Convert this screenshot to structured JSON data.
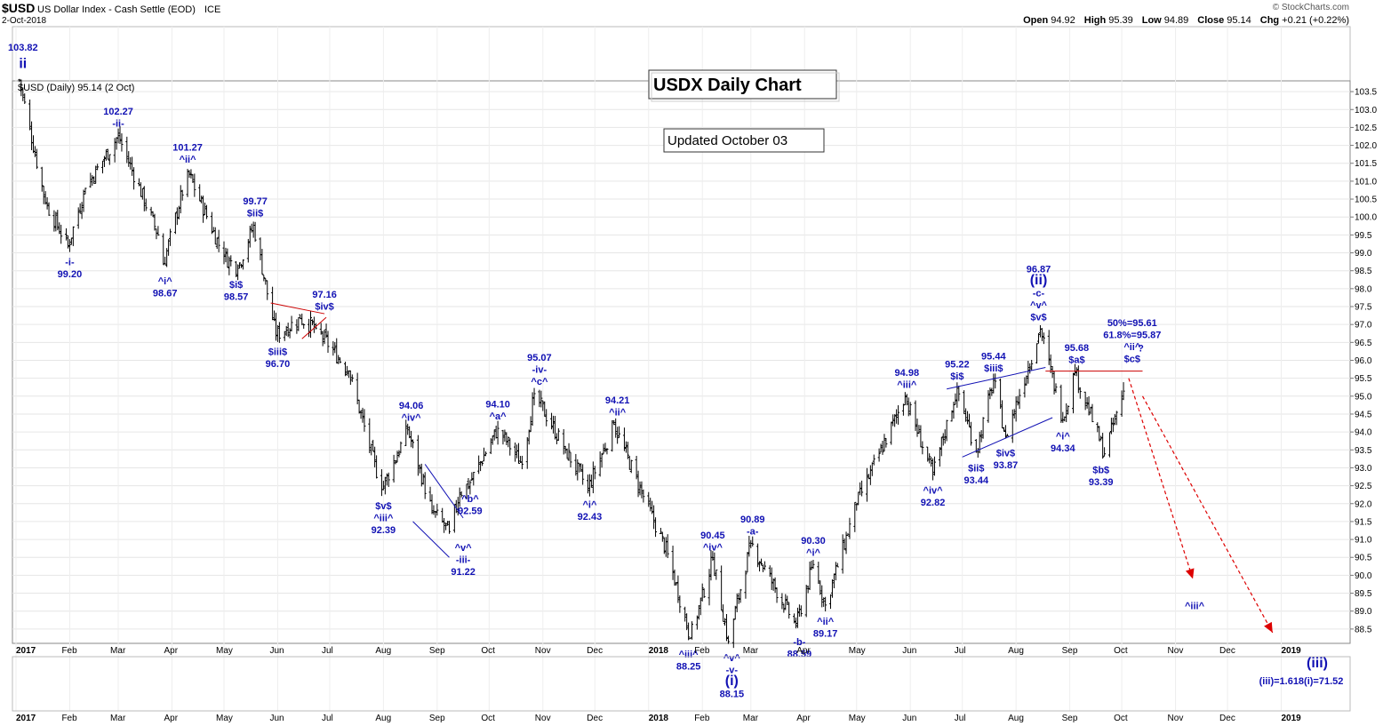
{
  "header": {
    "symbol": "$USD",
    "name": "US Dollar Index - Cash Settle (EOD)",
    "exchange": "ICE",
    "date": "2-Oct-2018",
    "copyright": "© StockCharts.com",
    "ohlc": [
      {
        "label": "Open",
        "value": "94.92"
      },
      {
        "label": "High",
        "value": "95.39"
      },
      {
        "label": "Low",
        "value": "94.89"
      },
      {
        "label": "Close",
        "value": "95.14"
      },
      {
        "label": "Chg",
        "value": "+0.21 (+0.22%)"
      }
    ]
  },
  "chart_data": {
    "type": "ohlc-bar",
    "series_label": "$USD (Daily) 95.14 (2 Oct)",
    "title_box": "USDX Daily Chart",
    "updated_box": "Updated October 03",
    "y_axis": {
      "min": 88.1,
      "max": 103.8,
      "ticks": [
        "88.5",
        "89.0",
        "89.5",
        "90.0",
        "90.5",
        "91.0",
        "91.5",
        "92.0",
        "92.5",
        "93.0",
        "93.5",
        "94.0",
        "94.5",
        "95.0",
        "95.5",
        "96.0",
        "96.5",
        "97.0",
        "97.5",
        "98.0",
        "98.5",
        "99.0",
        "99.5",
        "100.0",
        "100.5",
        "101.0",
        "101.5",
        "102.0",
        "102.5",
        "103.0",
        "103.5"
      ]
    },
    "x_axis": {
      "start": "2017-01-01",
      "end": "2019-01-31",
      "month_labels": [
        {
          "date": "2017-01-01",
          "label": "2017",
          "year": true
        },
        {
          "date": "2017-02-01",
          "label": "Feb"
        },
        {
          "date": "2017-03-01",
          "label": "Mar"
        },
        {
          "date": "2017-04-01",
          "label": "Apr"
        },
        {
          "date": "2017-05-01",
          "label": "May"
        },
        {
          "date": "2017-06-01",
          "label": "Jun"
        },
        {
          "date": "2017-07-01",
          "label": "Jul"
        },
        {
          "date": "2017-08-01",
          "label": "Aug"
        },
        {
          "date": "2017-09-01",
          "label": "Sep"
        },
        {
          "date": "2017-10-01",
          "label": "Oct"
        },
        {
          "date": "2017-11-01",
          "label": "Nov"
        },
        {
          "date": "2017-12-01",
          "label": "Dec"
        },
        {
          "date": "2018-01-01",
          "label": "2018",
          "year": true
        },
        {
          "date": "2018-02-01",
          "label": "Feb"
        },
        {
          "date": "2018-03-01",
          "label": "Mar"
        },
        {
          "date": "2018-04-01",
          "label": "Apr"
        },
        {
          "date": "2018-05-01",
          "label": "May"
        },
        {
          "date": "2018-06-01",
          "label": "Jun"
        },
        {
          "date": "2018-07-01",
          "label": "Jul"
        },
        {
          "date": "2018-08-01",
          "label": "Aug"
        },
        {
          "date": "2018-09-01",
          "label": "Sep"
        },
        {
          "date": "2018-10-01",
          "label": "Oct"
        },
        {
          "date": "2018-11-01",
          "label": "Nov"
        },
        {
          "date": "2018-12-01",
          "label": "Dec"
        },
        {
          "date": "2019-01-01",
          "label": "2019",
          "year": true
        }
      ]
    },
    "price_path": [
      [
        "2017-01-03",
        103.82
      ],
      [
        "2017-01-18",
        100.4
      ],
      [
        "2017-01-31",
        99.2
      ],
      [
        "2017-02-10",
        100.8
      ],
      [
        "2017-03-01",
        102.27
      ],
      [
        "2017-03-24",
        99.5
      ],
      [
        "2017-03-27",
        98.67
      ],
      [
        "2017-04-10",
        101.27
      ],
      [
        "2017-05-01",
        98.9
      ],
      [
        "2017-05-09",
        98.57
      ],
      [
        "2017-05-18",
        99.77
      ],
      [
        "2017-05-31",
        96.7
      ],
      [
        "2017-06-14",
        97.16
      ],
      [
        "2017-06-23",
        96.9
      ],
      [
        "2017-07-12",
        95.7
      ],
      [
        "2017-07-31",
        92.39
      ],
      [
        "2017-08-15",
        94.06
      ],
      [
        "2017-08-29",
        91.8
      ],
      [
        "2017-09-08",
        91.22
      ],
      [
        "2017-09-14",
        92.3
      ],
      [
        "2017-09-20",
        92.59
      ],
      [
        "2017-10-06",
        94.1
      ],
      [
        "2017-10-20",
        93.1
      ],
      [
        "2017-10-27",
        95.07
      ],
      [
        "2017-11-14",
        93.5
      ],
      [
        "2017-11-27",
        92.43
      ],
      [
        "2017-12-12",
        94.21
      ],
      [
        "2017-12-29",
        92.2
      ],
      [
        "2018-01-12",
        90.6
      ],
      [
        "2018-01-25",
        88.25
      ],
      [
        "2018-02-07",
        90.45
      ],
      [
        "2018-02-16",
        88.15
      ],
      [
        "2018-03-01",
        90.89
      ],
      [
        "2018-03-27",
        88.59
      ],
      [
        "2018-04-06",
        90.3
      ],
      [
        "2018-04-13",
        89.17
      ],
      [
        "2018-05-01",
        92.0
      ],
      [
        "2018-05-29",
        94.98
      ],
      [
        "2018-06-14",
        92.82
      ],
      [
        "2018-06-28",
        95.22
      ],
      [
        "2018-07-09",
        93.44
      ],
      [
        "2018-07-19",
        95.44
      ],
      [
        "2018-07-26",
        93.87
      ],
      [
        "2018-08-15",
        96.87
      ],
      [
        "2018-08-28",
        94.34
      ],
      [
        "2018-09-04",
        95.68
      ],
      [
        "2018-09-21",
        93.39
      ],
      [
        "2018-10-02",
        95.14
      ]
    ],
    "trendlines": [
      {
        "color": "#cc0000",
        "from": [
          "2017-05-28",
          97.6
        ],
        "to": [
          "2017-06-28",
          97.3
        ]
      },
      {
        "color": "#cc0000",
        "from": [
          "2017-06-15",
          96.6
        ],
        "to": [
          "2017-06-29",
          97.2
        ]
      },
      {
        "color": "#1212b4",
        "from": [
          "2017-08-25",
          93.1
        ],
        "to": [
          "2017-09-16",
          91.6
        ]
      },
      {
        "color": "#1212b4",
        "from": [
          "2017-08-18",
          91.5
        ],
        "to": [
          "2017-09-08",
          90.5
        ]
      },
      {
        "color": "#1212b4",
        "from": [
          "2018-06-22",
          95.2
        ],
        "to": [
          "2018-08-18",
          95.8
        ]
      },
      {
        "color": "#1212b4",
        "from": [
          "2018-07-01",
          93.3
        ],
        "to": [
          "2018-08-22",
          94.4
        ]
      },
      {
        "color": "#cc0000",
        "from": [
          "2018-08-18",
          95.7
        ],
        "to": [
          "2018-10-13",
          95.7
        ]
      }
    ],
    "projections": [
      {
        "from": [
          "2018-10-05",
          95.5
        ],
        "to": [
          "2018-11-11",
          89.9
        ]
      },
      {
        "from": [
          "2018-10-13",
          95.0
        ],
        "to": [
          "2018-12-27",
          88.4
        ]
      }
    ],
    "labels": [
      {
        "date": "2017-01-05",
        "price": 103.82,
        "lines": [
          "103.82",
          "ii"
        ],
        "up": true,
        "above_panel": true
      },
      {
        "date": "2017-02-01",
        "price": 99.2,
        "lines": [
          "-i-",
          "99.20"
        ],
        "up": false
      },
      {
        "date": "2017-03-01",
        "price": 102.27,
        "lines": [
          "102.27",
          "-ii-"
        ],
        "up": true
      },
      {
        "date": "2017-03-28",
        "price": 98.67,
        "lines": [
          "^i^",
          "98.67"
        ],
        "up": false
      },
      {
        "date": "2017-04-10",
        "price": 101.27,
        "lines": [
          "101.27",
          "^ii^"
        ],
        "up": true
      },
      {
        "date": "2017-05-08",
        "price": 98.57,
        "lines": [
          "$i$",
          "98.57"
        ],
        "up": false
      },
      {
        "date": "2017-05-19",
        "price": 99.77,
        "lines": [
          "99.77",
          "$ii$"
        ],
        "up": true
      },
      {
        "date": "2017-06-01",
        "price": 96.7,
        "lines": [
          "$iii$",
          "96.70"
        ],
        "up": false
      },
      {
        "date": "2017-06-28",
        "price": 97.16,
        "lines": [
          "97.16",
          "$iv$"
        ],
        "up": true
      },
      {
        "date": "2017-08-01",
        "price": 92.39,
        "lines": [
          "$v$",
          "^iii^",
          "92.39"
        ],
        "up": false
      },
      {
        "date": "2017-08-17",
        "price": 94.06,
        "lines": [
          "94.06",
          "^iv^"
        ],
        "up": true
      },
      {
        "date": "2017-09-16",
        "price": 91.22,
        "lines": [
          "^v^",
          "-iii-",
          "91.22"
        ],
        "up": false
      },
      {
        "date": "2017-09-20",
        "price": 92.59,
        "lines": [
          "^b^",
          "92.59"
        ],
        "up": false
      },
      {
        "date": "2017-10-06",
        "price": 94.1,
        "lines": [
          "94.10",
          "^a^"
        ],
        "up": true
      },
      {
        "date": "2017-10-30",
        "price": 95.07,
        "lines": [
          "95.07",
          "-iv-",
          "^c^"
        ],
        "up": true
      },
      {
        "date": "2017-11-28",
        "price": 92.43,
        "lines": [
          "^i^",
          "92.43"
        ],
        "up": false
      },
      {
        "date": "2017-12-14",
        "price": 94.21,
        "lines": [
          "94.21",
          "^ii^"
        ],
        "up": true
      },
      {
        "date": "2018-01-24",
        "price": 88.25,
        "lines": [
          "^iii^",
          "88.25"
        ],
        "up": false
      },
      {
        "date": "2018-02-07",
        "price": 90.45,
        "lines": [
          "90.45",
          "^iv^"
        ],
        "up": true
      },
      {
        "date": "2018-02-18",
        "price": 88.15,
        "lines": [
          "^v^",
          "-v-",
          "(i)",
          "88.15"
        ],
        "up": false
      },
      {
        "date": "2018-03-02",
        "price": 90.89,
        "lines": [
          "90.89",
          "-a-"
        ],
        "up": true
      },
      {
        "date": "2018-03-29",
        "price": 88.59,
        "lines": [
          "-b-",
          "88.59"
        ],
        "up": false
      },
      {
        "date": "2018-04-06",
        "price": 90.3,
        "lines": [
          "90.30",
          "^i^"
        ],
        "up": true
      },
      {
        "date": "2018-04-13",
        "price": 89.17,
        "lines": [
          "^ii^",
          "89.17"
        ],
        "up": false
      },
      {
        "date": "2018-05-30",
        "price": 94.98,
        "lines": [
          "94.98",
          "^iii^"
        ],
        "up": true
      },
      {
        "date": "2018-06-14",
        "price": 92.82,
        "lines": [
          "^iv^",
          "92.82"
        ],
        "up": false
      },
      {
        "date": "2018-06-28",
        "price": 95.22,
        "lines": [
          "95.22",
          "$i$"
        ],
        "up": true
      },
      {
        "date": "2018-07-09",
        "price": 93.44,
        "lines": [
          "$ii$",
          "93.44"
        ],
        "up": false
      },
      {
        "date": "2018-07-19",
        "price": 95.44,
        "lines": [
          "95.44",
          "$iii$"
        ],
        "up": true
      },
      {
        "date": "2018-07-26",
        "price": 93.87,
        "lines": [
          "$iv$",
          "93.87"
        ],
        "up": false
      },
      {
        "date": "2018-08-14",
        "price": 96.87,
        "lines": [
          "96.87",
          "(ii)",
          "-c-",
          "^v^",
          "$v$"
        ],
        "up": true
      },
      {
        "date": "2018-08-28",
        "price": 94.34,
        "lines": [
          "^i^",
          "94.34"
        ],
        "up": false
      },
      {
        "date": "2018-09-05",
        "price": 95.68,
        "lines": [
          "95.68",
          "$a$"
        ],
        "up": true
      },
      {
        "date": "2018-09-19",
        "price": 93.39,
        "lines": [
          "$b$",
          "93.39"
        ],
        "up": false
      },
      {
        "date": "2018-10-07",
        "price": 95.7,
        "lines": [
          "50%=95.61",
          "61.8%=95.87",
          "^ii^",
          "$c$"
        ],
        "up": true
      },
      {
        "date": "2018-10-12",
        "price": 96.0,
        "lines": [
          "?"
        ],
        "up": true,
        "free": true
      },
      {
        "date": "2018-11-12",
        "price": 89.6,
        "lines": [
          "^iii^"
        ],
        "up": false
      }
    ],
    "targets": [
      {
        "lines": [
          "(iii)",
          "(iii)=1.618(i)=71.52"
        ]
      }
    ]
  }
}
